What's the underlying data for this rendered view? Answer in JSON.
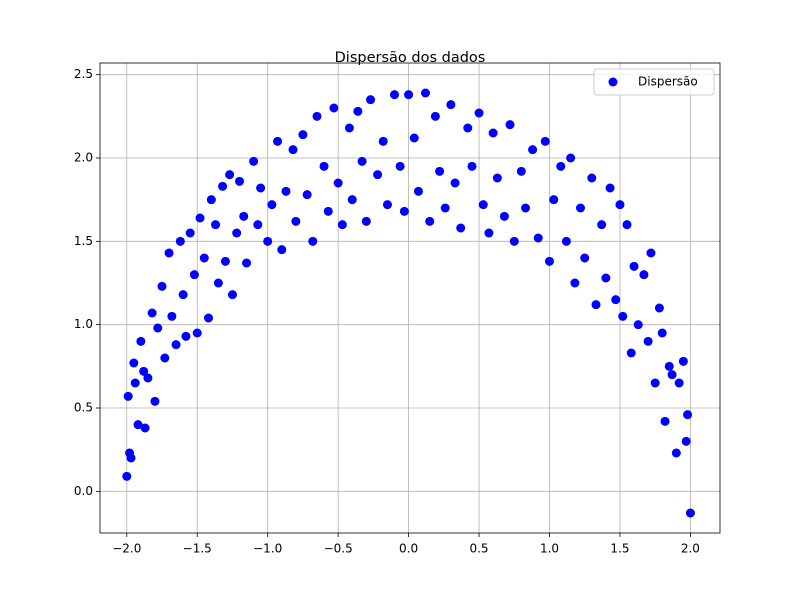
{
  "chart_data": {
    "type": "scatter",
    "title": "Dispersão dos dados",
    "x": [
      -2.0,
      -1.99,
      -1.98,
      -1.97,
      -1.95,
      -1.94,
      -1.92,
      -1.9,
      -1.88,
      -1.87,
      -1.85,
      -1.82,
      -1.8,
      -1.78,
      -1.75,
      -1.73,
      -1.7,
      -1.68,
      -1.65,
      -1.62,
      -1.6,
      -1.58,
      -1.55,
      -1.52,
      -1.5,
      -1.48,
      -1.45,
      -1.42,
      -1.4,
      -1.37,
      -1.35,
      -1.32,
      -1.3,
      -1.27,
      -1.25,
      -1.22,
      -1.2,
      -1.17,
      -1.15,
      -1.1,
      -1.07,
      -1.05,
      -1.0,
      -0.97,
      -0.93,
      -0.9,
      -0.87,
      -0.82,
      -0.8,
      -0.75,
      -0.72,
      -0.68,
      -0.65,
      -0.6,
      -0.57,
      -0.53,
      -0.5,
      -0.47,
      -0.42,
      -0.4,
      -0.36,
      -0.33,
      -0.3,
      -0.27,
      -0.22,
      -0.18,
      -0.15,
      -0.1,
      -0.06,
      -0.03,
      0.0,
      0.04,
      0.07,
      0.12,
      0.15,
      0.19,
      0.22,
      0.26,
      0.3,
      0.33,
      0.37,
      0.42,
      0.45,
      0.5,
      0.53,
      0.57,
      0.6,
      0.63,
      0.68,
      0.72,
      0.75,
      0.8,
      0.83,
      0.88,
      0.92,
      0.97,
      1.0,
      1.03,
      1.08,
      1.12,
      1.15,
      1.18,
      1.22,
      1.25,
      1.3,
      1.33,
      1.37,
      1.4,
      1.43,
      1.47,
      1.5,
      1.52,
      1.55,
      1.58,
      1.6,
      1.63,
      1.67,
      1.7,
      1.72,
      1.75,
      1.78,
      1.8,
      1.82,
      1.85,
      1.87,
      1.9,
      1.92,
      1.95,
      1.97,
      1.98,
      2.0
    ],
    "series": [
      {
        "name": "Dispersão",
        "color": "#0000ff",
        "values": [
          0.09,
          0.57,
          0.23,
          0.2,
          0.77,
          0.65,
          0.4,
          0.9,
          0.72,
          0.38,
          0.68,
          1.07,
          0.54,
          0.98,
          1.23,
          0.8,
          1.43,
          1.05,
          0.88,
          1.5,
          1.18,
          0.93,
          1.55,
          1.3,
          0.95,
          1.64,
          1.4,
          1.04,
          1.75,
          1.6,
          1.25,
          1.83,
          1.38,
          1.9,
          1.18,
          1.55,
          1.86,
          1.65,
          1.37,
          1.98,
          1.6,
          1.82,
          1.5,
          1.72,
          2.1,
          1.45,
          1.8,
          2.05,
          1.62,
          2.14,
          1.78,
          1.5,
          2.25,
          1.95,
          1.68,
          2.3,
          1.85,
          1.6,
          2.18,
          1.75,
          2.28,
          1.98,
          1.62,
          2.35,
          1.9,
          2.1,
          1.72,
          2.38,
          1.95,
          1.68,
          2.38,
          2.12,
          1.8,
          2.39,
          1.62,
          2.25,
          1.92,
          1.7,
          2.32,
          1.85,
          1.58,
          2.18,
          1.95,
          2.27,
          1.72,
          1.55,
          2.15,
          1.88,
          1.65,
          2.2,
          1.5,
          1.92,
          1.7,
          2.05,
          1.52,
          2.1,
          1.38,
          1.75,
          1.95,
          1.5,
          2.0,
          1.25,
          1.7,
          1.4,
          1.88,
          1.12,
          1.6,
          1.28,
          1.82,
          1.15,
          1.72,
          1.05,
          1.6,
          0.83,
          1.35,
          1.0,
          1.3,
          0.9,
          1.43,
          0.65,
          1.1,
          0.95,
          0.42,
          0.75,
          0.7,
          0.23,
          0.65,
          0.78,
          0.3,
          0.46,
          -0.13
        ]
      }
    ],
    "xlim": [
      -2.19,
      2.21
    ],
    "ylim": [
      -0.25,
      2.57
    ],
    "xticks": [
      {
        "value": -2.0,
        "label": "−2.0"
      },
      {
        "value": -1.5,
        "label": "−1.5"
      },
      {
        "value": -1.0,
        "label": "−1.0"
      },
      {
        "value": -0.5,
        "label": "−0.5"
      },
      {
        "value": 0.0,
        "label": "0.0"
      },
      0.5,
      {
        "value": 1.0,
        "label": "1.0"
      },
      1.5,
      {
        "value": 2.0,
        "label": "2.0"
      }
    ],
    "yticks": [
      {
        "value": 0.0,
        "label": "0.0"
      },
      0.5,
      {
        "value": 1.0,
        "label": "1.0"
      },
      1.5,
      {
        "value": 2.0,
        "label": "2.0"
      },
      2.5
    ],
    "grid": true,
    "legend": "upper right"
  }
}
